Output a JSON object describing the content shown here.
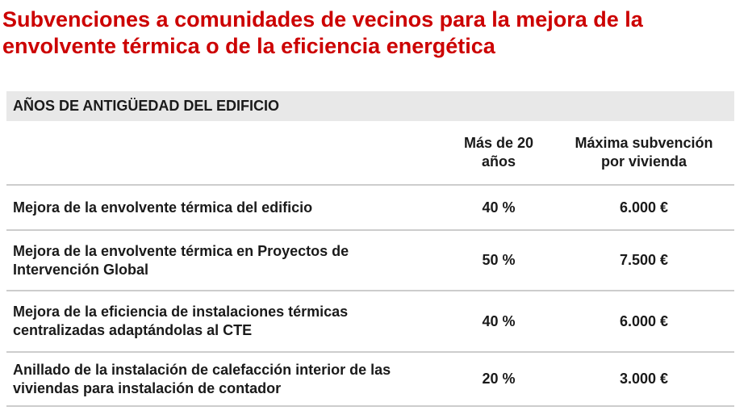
{
  "title": {
    "line1": "Subvenciones a comunidades de vecinos para la mejora de la",
    "line2": "envolvente térmica o de la eficiencia energética"
  },
  "colors": {
    "title_red": "#cc0000",
    "body_text": "#1a1a1a",
    "section_bar_background": "#e8e8e8",
    "divider": "#cdcdcd"
  },
  "table": {
    "section_header": "AÑOS DE ANTIGÜEDAD DEL EDIFICIO",
    "column_headers": {
      "age_over_20": "Más de 20 años",
      "max_subsidy": "Máxima subvención por vivienda"
    },
    "rows": [
      {
        "concept": "Mejora de la envolvente térmica del edificio",
        "subsidy_pct": "40 %",
        "max_per_dwelling": "6.000 €"
      },
      {
        "concept": "Mejora de la envolvente térmica en Proyectos de Intervención Global",
        "subsidy_pct": "50 %",
        "max_per_dwelling": "7.500 €"
      },
      {
        "concept": "Mejora de la eficiencia de instalaciones térmicas centralizadas adaptándolas al CTE",
        "subsidy_pct": "40 %",
        "max_per_dwelling": "6.000 €"
      },
      {
        "concept": "Anillado de la instalación de calefacción interior de las viviendas para instalación de contador",
        "subsidy_pct": "20 %",
        "max_per_dwelling": "3.000 €"
      }
    ]
  }
}
